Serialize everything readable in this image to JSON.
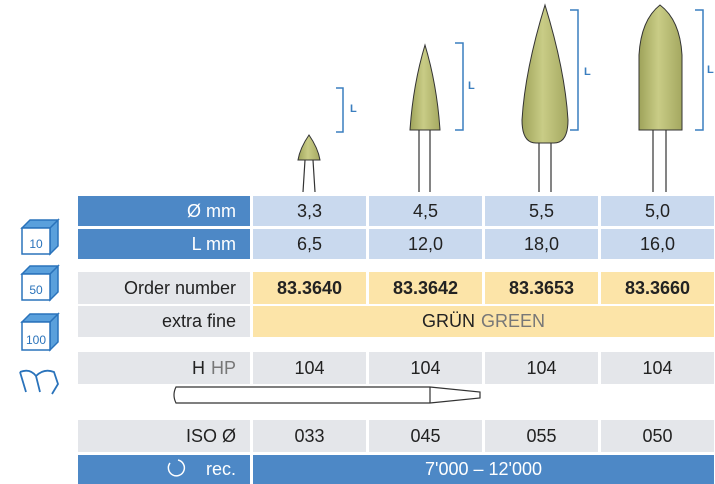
{
  "length_markers": [
    "L",
    "L",
    "L",
    "L"
  ],
  "pack_sizes": [
    "10",
    "50",
    "100"
  ],
  "table": {
    "diameter": {
      "label": "Ø mm",
      "values": [
        "3,3",
        "4,5",
        "5,5",
        "5,0"
      ]
    },
    "length": {
      "label": "L mm",
      "values": [
        "6,5",
        "12,0",
        "18,0",
        "16,0"
      ]
    },
    "order_number": {
      "label": "Order number",
      "values": [
        "83.3640",
        "83.3642",
        "83.3653",
        "83.3660"
      ]
    },
    "grit": {
      "label": "extra fine",
      "value": "GRÜN",
      "value_en": "GREEN"
    },
    "shank": {
      "label": "H",
      "label_en": "HP",
      "values": [
        "104",
        "104",
        "104",
        "104"
      ]
    },
    "iso": {
      "label": "ISO Ø",
      "values": [
        "033",
        "045",
        "055",
        "050"
      ]
    },
    "speed": {
      "label": "rec.",
      "value": "7'000 – 12'000"
    }
  }
}
